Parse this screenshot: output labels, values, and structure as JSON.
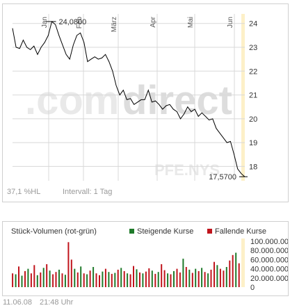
{
  "watermark": {
    "brand_left": ".com",
    "brand_right": "direct",
    "ticker": "PFE.NYS"
  },
  "footer": {
    "pct_hl": "37,1 %HL",
    "interval": "Intervall: 1 Tag",
    "date": "11.06.08",
    "time": "21:48 Uhr"
  },
  "volume_panel": {
    "title": "Stück-Volumen (rot-grün)",
    "legend_up": "Steigende Kurse",
    "legend_down": "Fallende Kurse",
    "color_up": "#1f7a2a",
    "color_down": "#c0141c"
  },
  "chart_data": [
    {
      "type": "line",
      "x_labels": [
        "Jan",
        "Feb",
        "März",
        "Apr",
        "Mai",
        "Jun"
      ],
      "y_ticks": [
        "24",
        "23",
        "22",
        "21",
        "20",
        "19",
        "18"
      ],
      "ylim": [
        17.4,
        24.4
      ],
      "grid": true,
      "max_label": "24,0800",
      "min_label": "17,5700",
      "max_value": 24.08,
      "min_value": 17.57,
      "values": [
        23.8,
        23.0,
        22.95,
        23.3,
        23.0,
        22.9,
        23.05,
        22.7,
        23.0,
        23.2,
        23.5,
        24.08,
        23.95,
        23.5,
        23.1,
        22.7,
        22.5,
        23.1,
        23.5,
        23.6,
        23.2,
        22.4,
        22.5,
        22.6,
        22.5,
        22.55,
        22.7,
        22.4,
        22.0,
        21.4,
        21.0,
        21.2,
        20.8,
        20.85,
        20.6,
        20.7,
        20.8,
        20.8,
        21.2,
        20.7,
        20.75,
        20.6,
        20.4,
        20.55,
        20.6,
        20.4,
        20.3,
        20.0,
        20.2,
        20.5,
        20.3,
        20.4,
        20.1,
        20.25,
        20.1,
        19.95,
        20.0,
        19.6,
        19.4,
        19.2,
        19.0,
        19.05,
        18.5,
        17.9,
        17.7,
        17.57
      ],
      "color": "#000000"
    },
    {
      "type": "bar",
      "y_ticks": [
        "100.000.000",
        "80.000.000",
        "60.000.000",
        "40.000.000",
        "20.000.000",
        "0"
      ],
      "ylim": [
        0,
        100000000
      ],
      "series": [
        {
          "name": "Steigende Kurse",
          "color": "#1f7a2a"
        },
        {
          "name": "Fallende Kurse",
          "color": "#c0141c"
        }
      ],
      "values": [
        30000000,
        28000000,
        45000000,
        25000000,
        35000000,
        40000000,
        30000000,
        48000000,
        26000000,
        32000000,
        42000000,
        50000000,
        36000000,
        28000000,
        33000000,
        38000000,
        30000000,
        27000000,
        98000000,
        60000000,
        40000000,
        32000000,
        45000000,
        30000000,
        28000000,
        36000000,
        44000000,
        30000000,
        26000000,
        34000000,
        40000000,
        33000000,
        29000000,
        31000000,
        38000000,
        42000000,
        35000000,
        30000000,
        28000000,
        46000000,
        39000000,
        32000000,
        30000000,
        34000000,
        41000000,
        36000000,
        29000000,
        33000000,
        50000000,
        37000000,
        30000000,
        28000000,
        35000000,
        40000000,
        32000000,
        62000000,
        44000000,
        38000000,
        31000000,
        40000000,
        35000000,
        42000000,
        33000000,
        30000000,
        38000000,
        55000000,
        48000000,
        40000000,
        36000000,
        44000000,
        58000000,
        70000000,
        75000000,
        52000000
      ],
      "directions": [
        "d",
        "u",
        "d",
        "u",
        "d",
        "u",
        "d",
        "d",
        "u",
        "d",
        "u",
        "d",
        "u",
        "d",
        "d",
        "u",
        "d",
        "u",
        "d",
        "d",
        "u",
        "d",
        "u",
        "d",
        "u",
        "d",
        "u",
        "d",
        "d",
        "u",
        "d",
        "u",
        "d",
        "u",
        "d",
        "u",
        "d",
        "u",
        "d",
        "d",
        "u",
        "d",
        "u",
        "d",
        "d",
        "u",
        "d",
        "u",
        "d",
        "d",
        "u",
        "d",
        "u",
        "d",
        "d",
        "u",
        "d",
        "u",
        "d",
        "u",
        "d",
        "u",
        "d",
        "u",
        "d",
        "d",
        "u",
        "d",
        "d",
        "u",
        "d",
        "d",
        "u",
        "d"
      ]
    }
  ]
}
